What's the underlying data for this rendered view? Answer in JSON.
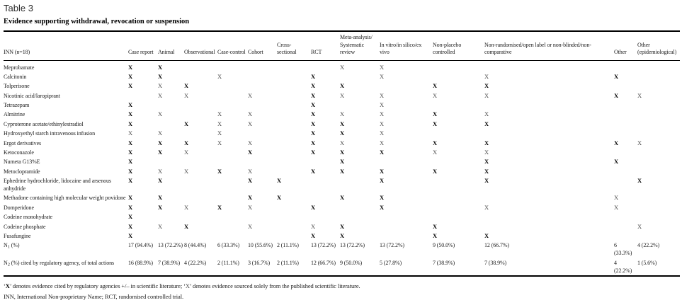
{
  "header": {
    "label": "Table 3",
    "title": "Evidence supporting withdrawal, revocation or suspension"
  },
  "table": {
    "marks": {
      "B": "X",
      "R": "X"
    },
    "columns": [
      {
        "key": "inn",
        "lines": [
          "INN (n=18)"
        ]
      },
      {
        "key": "case-report",
        "lines": [
          "Case report"
        ]
      },
      {
        "key": "animal",
        "lines": [
          "Animal"
        ]
      },
      {
        "key": "observational",
        "lines": [
          "Observational"
        ]
      },
      {
        "key": "case-control",
        "lines": [
          "Case-control"
        ]
      },
      {
        "key": "cohort",
        "lines": [
          "Cohort"
        ]
      },
      {
        "key": "cross-sectional",
        "lines": [
          "Cross-",
          "sectional"
        ]
      },
      {
        "key": "rct",
        "lines": [
          "RCT"
        ]
      },
      {
        "key": "meta-analysis",
        "lines": [
          "Meta-analysis/",
          "Systematic",
          "review"
        ]
      },
      {
        "key": "in-vitro",
        "lines": [
          "In vitro/in silico/ex",
          "vivo"
        ]
      },
      {
        "key": "non-placebo",
        "lines": [
          "Non-placebo",
          "controlled"
        ]
      },
      {
        "key": "non-randomised",
        "lines": [
          "Non-randomised/open label or non-blinded/non-",
          "comparative"
        ]
      },
      {
        "key": "other",
        "lines": [
          "Other"
        ]
      },
      {
        "key": "other-epidemiological",
        "lines": [
          "Other",
          "(epidemiological)"
        ]
      }
    ],
    "rows": [
      {
        "type": "marks",
        "label": "Meprobamate",
        "cells": [
          "B",
          "B",
          "",
          "",
          "",
          "",
          "",
          "R",
          "R",
          "",
          "",
          "",
          ""
        ]
      },
      {
        "type": "marks",
        "label": "Calcitonin",
        "cells": [
          "B",
          "B",
          "",
          "R",
          "",
          "",
          "B",
          "",
          "R",
          "",
          "R",
          "B",
          ""
        ]
      },
      {
        "type": "marks",
        "label": "Tolperisone",
        "cells": [
          "B",
          "R",
          "B",
          "",
          "",
          "",
          "B",
          "B",
          "",
          "B",
          "B",
          "",
          ""
        ]
      },
      {
        "type": "marks",
        "label": "Nicotinic acid/laropiprant",
        "cells": [
          "",
          "R",
          "R",
          "",
          "R",
          "",
          "B",
          "R",
          "R",
          "R",
          "R",
          "B",
          "R"
        ]
      },
      {
        "type": "marks",
        "label": "Tetrazepam",
        "cells": [
          "B",
          "",
          "",
          "",
          "",
          "",
          "B",
          "",
          "R",
          "",
          "",
          "",
          ""
        ]
      },
      {
        "type": "marks",
        "label": "Almitrine",
        "cells": [
          "B",
          "R",
          "",
          "R",
          "R",
          "",
          "B",
          "R",
          "R",
          "B",
          "R",
          "",
          ""
        ]
      },
      {
        "type": "marks",
        "label": "Cyproterone acetate/ethinylestradiol",
        "cells": [
          "B",
          "",
          "B",
          "R",
          "R",
          "",
          "B",
          "B",
          "R",
          "B",
          "B",
          "",
          ""
        ]
      },
      {
        "type": "marks",
        "label": "Hydroxyethyl starch intravenous infusion",
        "cells": [
          "R",
          "R",
          "",
          "R",
          "",
          "",
          "B",
          "B",
          "R",
          "",
          "",
          "",
          ""
        ]
      },
      {
        "type": "marks",
        "label": "Ergot derivatives",
        "cells": [
          "B",
          "B",
          "B",
          "R",
          "R",
          "",
          "B",
          "R",
          "R",
          "B",
          "B",
          "B",
          "R"
        ]
      },
      {
        "type": "marks",
        "label": "Ketoconazole",
        "cells": [
          "B",
          "B",
          "R",
          "",
          "B",
          "",
          "B",
          "B",
          "B",
          "R",
          "R",
          "",
          ""
        ]
      },
      {
        "type": "marks",
        "label": "Numeta G13%E",
        "cells": [
          "B",
          "",
          "",
          "",
          "",
          "",
          "",
          "B",
          "",
          "",
          "B",
          "B",
          ""
        ]
      },
      {
        "type": "marks",
        "label": "Metoclopramide",
        "cells": [
          "B",
          "R",
          "R",
          "B",
          "R",
          "",
          "B",
          "B",
          "B",
          "B",
          "B",
          "",
          ""
        ]
      },
      {
        "type": "marks",
        "label": "Ephedrine hydrochloride, lidocaine and arsenous anhydride",
        "cells": [
          "B",
          "B",
          "",
          "",
          "B",
          "B",
          "",
          "",
          "B",
          "",
          "B",
          "",
          "B"
        ]
      },
      {
        "type": "marks",
        "label": "Methadone containing high molecular weight povidone",
        "cells": [
          "B",
          "B",
          "",
          "",
          "B",
          "B",
          "",
          "B",
          "B",
          "",
          "",
          "R",
          ""
        ]
      },
      {
        "type": "marks",
        "label": "Domperidone",
        "cells": [
          "B",
          "B",
          "R",
          "B",
          "R",
          "",
          "B",
          "",
          "B",
          "",
          "R",
          "R",
          ""
        ]
      },
      {
        "type": "marks",
        "label": "Codeine monohydrate",
        "cells": [
          "B",
          "",
          "",
          "",
          "",
          "",
          "",
          "",
          "",
          "",
          "",
          "",
          ""
        ]
      },
      {
        "type": "marks",
        "label": "Codeine phosphate",
        "cells": [
          "B",
          "R",
          "B",
          "",
          "R",
          "",
          "R",
          "B",
          "",
          "B",
          "",
          "",
          "R"
        ]
      },
      {
        "type": "marks",
        "label": "Fusafungine",
        "cells": [
          "B",
          "",
          "",
          "",
          "",
          "",
          "B",
          "B",
          "",
          "B",
          "B",
          "",
          ""
        ]
      },
      {
        "type": "summary",
        "label_pre": "N",
        "label_sub": "1",
        "label_post": " (%)",
        "cells": [
          "17 (94.4%)",
          "13 (72.2%)",
          "8 (44.4%)",
          "6 (33.3%)",
          "10 (55.6%)",
          "2 (11.1%)",
          "13 (72.2%)",
          "13 (72.2%)",
          "13 (72.2%)",
          "9 (50.0%)",
          "12 (66.7%)",
          "6 (33.3%)",
          "4 (22.2%)"
        ]
      },
      {
        "type": "summary",
        "label_pre": "N",
        "label_sub": "2",
        "label_post": " (%) cited by regulatory agency, of total actions",
        "cells": [
          "16 (88.9%)",
          "7 (38.9%)",
          "4 (22.2%)",
          "2 (11.1%)",
          "3 (16.7%)",
          "2 (11.1%)",
          "12 (66.7%)",
          "9 (50.0%)",
          "5 (27.8%)",
          "7 (38.9%)",
          "7 (38.9%)",
          "4 (22.2%)",
          "1 (5.6%)"
        ]
      }
    ]
  },
  "footnotes": {
    "legend": {
      "q1": "‘",
      "bold_x": "X",
      "mid": "’ denotes evidence cited by regulatory agencies +/– in scientific literature; ‘",
      "plain_x": "X",
      "end": "’ denotes evidence sourced solely from the published scientific literature."
    },
    "abbreviations": "INN, International Non-proprietary Name; RCT, randomised controlled trial."
  }
}
